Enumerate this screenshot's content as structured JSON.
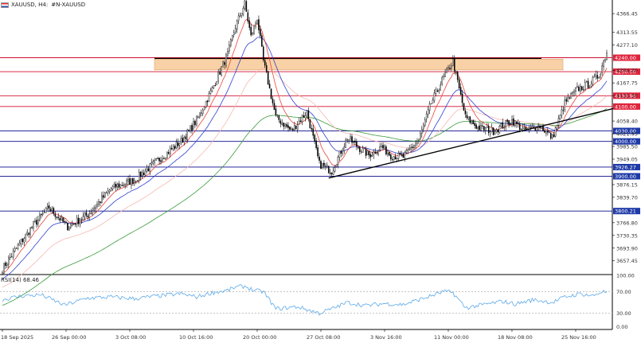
{
  "header": {
    "symbol": "XAUUSD, H4:",
    "description": "#N-XAUUSD"
  },
  "rsi_panel": {
    "label": "RSI(14) 68.46"
  },
  "colors": {
    "bull_candle": "#ffffff",
    "bear_candle": "#000000",
    "ema_fast": "#e8453c",
    "ema_mid": "#2f3fd0",
    "ema_slow": "#f4b8b0",
    "ema_long": "#3a9a3a",
    "resistance_zone": "#f9d1a6",
    "level_red": "#d01030",
    "level_blue": "#0a0a8c",
    "trendline": "#000000",
    "rsi_line": "#5aa8e8",
    "badge_red": "#e0243c",
    "badge_blue": "#1e3aa8"
  },
  "chart_data": {
    "type": "candlestick",
    "title": "XAUUSD, H4",
    "ylim": [
      3620.35,
      4405.5
    ],
    "y_ticks": [
      "4366.45",
      "4313.55",
      "4277.10",
      "4204.20",
      "4167.75",
      "4131.30",
      "4058.40",
      "4021.95",
      "3985.50",
      "3949.05",
      "3876.15",
      "3839.70",
      "3766.80",
      "3730.35",
      "3693.90",
      "3657.45"
    ],
    "x_ticks": [
      "18 Sep 2025",
      "26 Sep 00:00",
      "3 Oct 08:00",
      "10 Oct 16:00",
      "20 Oct 00:00",
      "27 Oct 08:00",
      "3 Nov 16:00",
      "11 Nov 00:00",
      "18 Nov 08:00",
      "25 Nov 16:00"
    ],
    "x_tick_bar_index": [
      0,
      41,
      82,
      123,
      164,
      205,
      246,
      287,
      328,
      369
    ],
    "bar_count": 390,
    "price_path": [
      [
        0,
        3635
      ],
      [
        10,
        3700
      ],
      [
        20,
        3760
      ],
      [
        30,
        3810
      ],
      [
        42,
        3755
      ],
      [
        55,
        3790
      ],
      [
        70,
        3865
      ],
      [
        85,
        3890
      ],
      [
        100,
        3945
      ],
      [
        115,
        4000
      ],
      [
        125,
        4060
      ],
      [
        135,
        4150
      ],
      [
        145,
        4250
      ],
      [
        150,
        4330
      ],
      [
        156,
        4395
      ],
      [
        160,
        4300
      ],
      [
        164,
        4355
      ],
      [
        168,
        4230
      ],
      [
        176,
        4070
      ],
      [
        186,
        4030
      ],
      [
        196,
        4085
      ],
      [
        204,
        3935
      ],
      [
        212,
        3915
      ],
      [
        222,
        4010
      ],
      [
        230,
        3980
      ],
      [
        236,
        3960
      ],
      [
        244,
        3985
      ],
      [
        250,
        3960
      ],
      [
        258,
        3955
      ],
      [
        268,
        4005
      ],
      [
        276,
        4110
      ],
      [
        283,
        4175
      ],
      [
        290,
        4230
      ],
      [
        298,
        4070
      ],
      [
        306,
        4040
      ],
      [
        316,
        4030
      ],
      [
        328,
        4060
      ],
      [
        336,
        4030
      ],
      [
        346,
        4045
      ],
      [
        354,
        4010
      ],
      [
        362,
        4110
      ],
      [
        370,
        4150
      ],
      [
        378,
        4165
      ],
      [
        384,
        4190
      ],
      [
        389,
        4258
      ]
    ],
    "moving_averages": [
      {
        "name": "EMA fast",
        "color": "#e8453c",
        "period": 10
      },
      {
        "name": "EMA mid",
        "color": "#2f3fd0",
        "period": 25
      },
      {
        "name": "EMA slow",
        "color": "#f4b8b0",
        "period": 55
      },
      {
        "name": "EMA long",
        "color": "#3a9a3a",
        "period": 120
      }
    ],
    "resistance_zone": {
      "from": 4205,
      "to": 4236
    },
    "resistance_line_value": 4238,
    "horizontal_levels": [
      {
        "value": 4240.0,
        "label": "4240.00",
        "color": "red"
      },
      {
        "value": 4200.0,
        "label": "4200.00",
        "color": "red"
      },
      {
        "value": 4130.96,
        "label": "4130.96",
        "color": "red"
      },
      {
        "value": 4100.0,
        "label": "4100.00",
        "color": "red"
      },
      {
        "value": 4030.0,
        "label": "4030.00",
        "color": "blue"
      },
      {
        "value": 4000.0,
        "label": "4000.00",
        "color": "blue"
      },
      {
        "value": 3926.27,
        "label": "3926.27",
        "color": "blue"
      },
      {
        "value": 3900.0,
        "label": "3900.00",
        "color": "blue"
      },
      {
        "value": 3800.21,
        "label": "3800.21",
        "color": "blue"
      }
    ],
    "trendline": {
      "start_bar": 210,
      "start_value": 3895,
      "end_bar": 389,
      "end_value": 4094
    },
    "rsi": {
      "period": 14,
      "current": 68.46,
      "ylim": [
        0,
        100
      ],
      "y_ticks": [
        "100.00",
        "70.00",
        "30.00",
        "0.00"
      ],
      "levels": [
        70,
        30
      ],
      "path": [
        [
          0,
          55
        ],
        [
          12,
          62
        ],
        [
          25,
          64
        ],
        [
          40,
          45
        ],
        [
          55,
          58
        ],
        [
          70,
          60
        ],
        [
          85,
          57
        ],
        [
          100,
          62
        ],
        [
          115,
          66
        ],
        [
          125,
          60
        ],
        [
          135,
          68
        ],
        [
          145,
          72
        ],
        [
          150,
          78
        ],
        [
          156,
          80
        ],
        [
          162,
          72
        ],
        [
          168,
          70
        ],
        [
          176,
          38
        ],
        [
          190,
          42
        ],
        [
          204,
          30
        ],
        [
          212,
          38
        ],
        [
          222,
          50
        ],
        [
          234,
          44
        ],
        [
          246,
          48
        ],
        [
          258,
          46
        ],
        [
          268,
          55
        ],
        [
          276,
          62
        ],
        [
          284,
          70
        ],
        [
          290,
          68
        ],
        [
          298,
          40
        ],
        [
          310,
          46
        ],
        [
          322,
          52
        ],
        [
          330,
          47
        ],
        [
          342,
          55
        ],
        [
          354,
          50
        ],
        [
          362,
          60
        ],
        [
          372,
          66
        ],
        [
          380,
          62
        ],
        [
          386,
          70
        ],
        [
          389,
          68.46
        ]
      ]
    }
  }
}
